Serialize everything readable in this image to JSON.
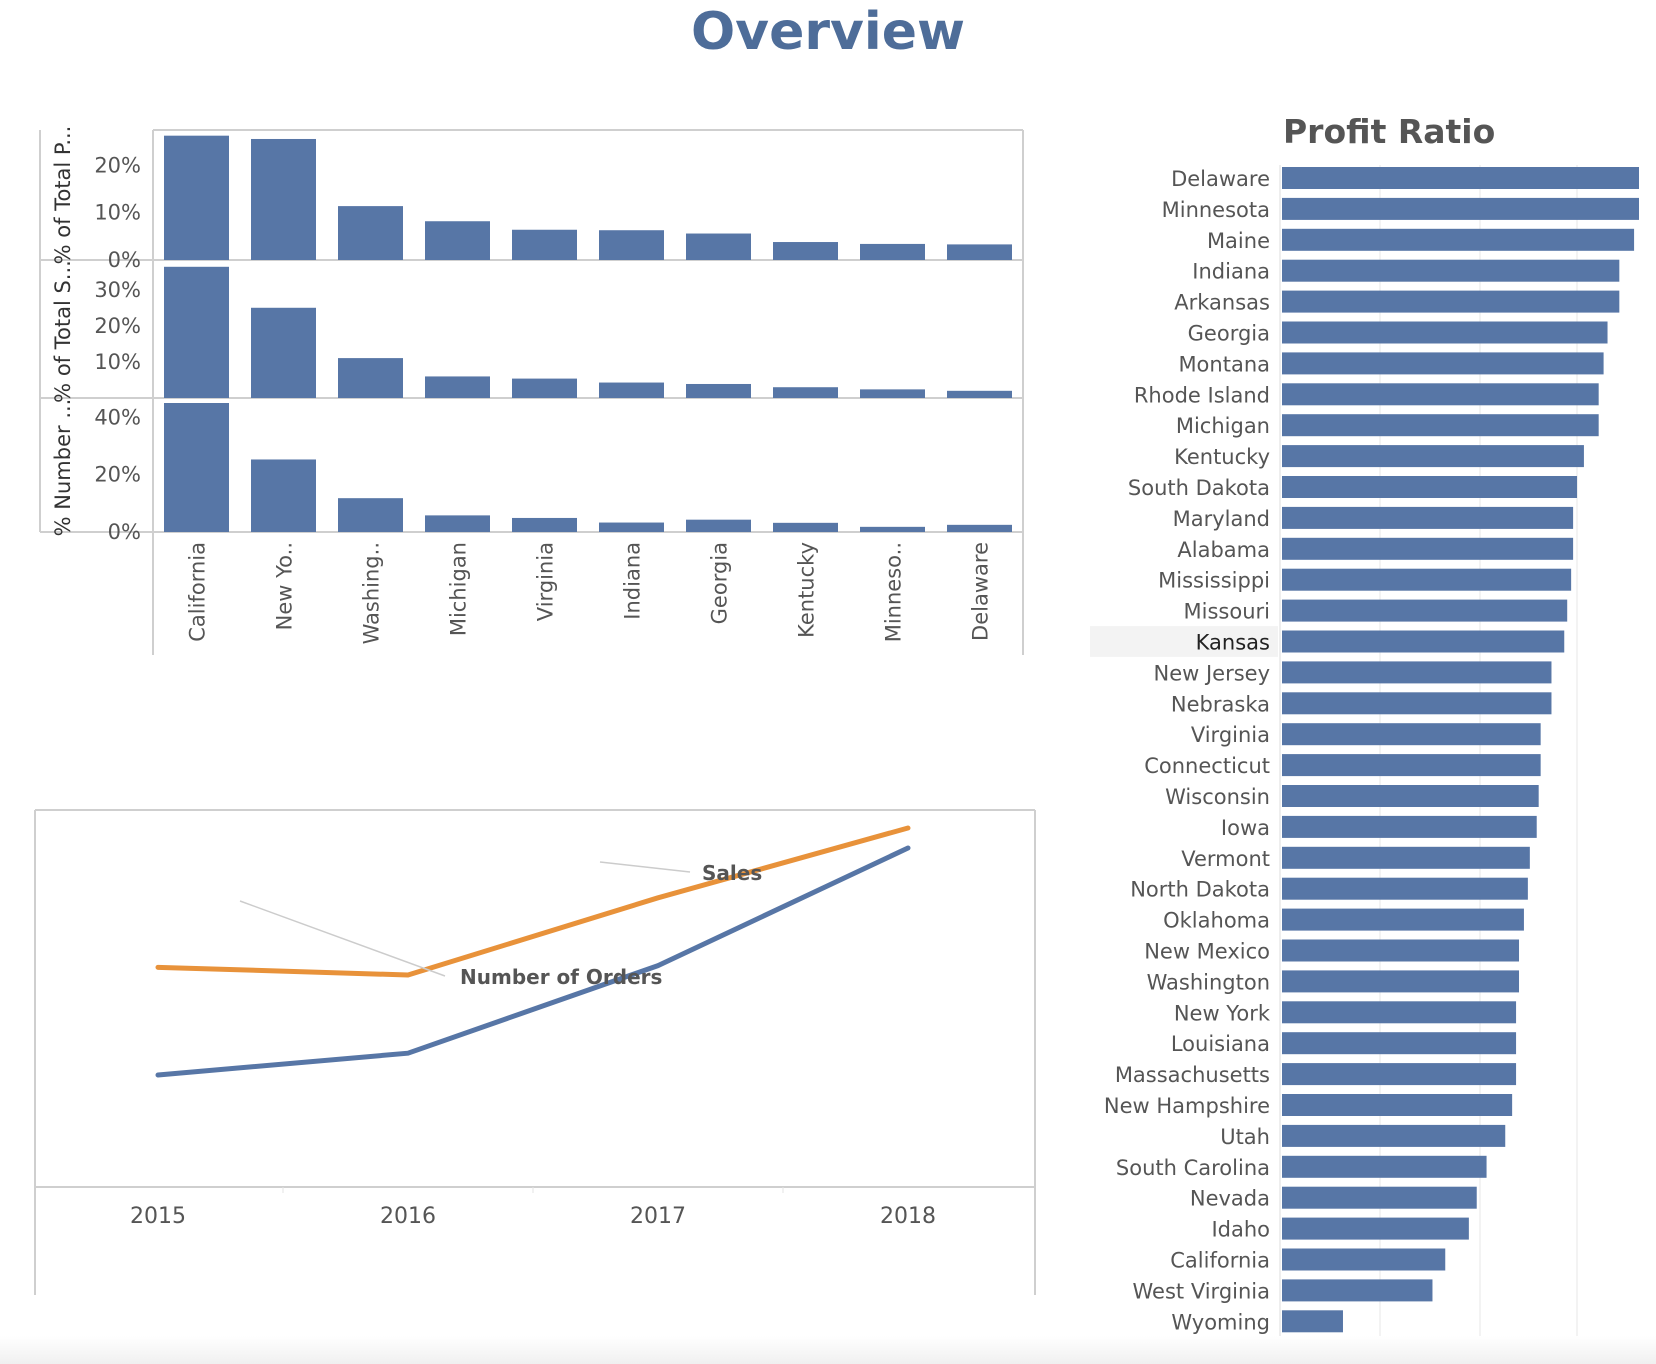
{
  "page": {
    "title": "Overview"
  },
  "chart_data": [
    {
      "type": "bar",
      "categories": [
        "California",
        "New Yo..",
        "Washing..",
        "Michigan",
        "Virginia",
        "Indiana",
        "Georgia",
        "Kentucky",
        "Minneso..",
        "Delaware"
      ],
      "series": [
        {
          "label": "% of Total P...",
          "values": [
            26.3,
            25.6,
            11.4,
            8.2,
            6.4,
            6.3,
            5.6,
            3.8,
            3.4,
            3.3
          ],
          "ticks": [
            0,
            10,
            20
          ],
          "ylim": [
            0,
            27.5
          ]
        },
        {
          "label": "% of Total S...",
          "values": [
            36.5,
            25.1,
            11.1,
            6.0,
            5.4,
            4.3,
            3.9,
            3.0,
            2.4,
            2.0
          ],
          "ticks": [
            10,
            20,
            30
          ],
          "ylim": [
            0,
            37
          ]
        },
        {
          "label": "% Number ...",
          "values": [
            45.0,
            25.3,
            11.8,
            5.8,
            4.9,
            3.3,
            4.3,
            3.2,
            1.8,
            2.5
          ],
          "ticks": [
            0,
            20,
            40
          ],
          "ylim": [
            0,
            45
          ]
        }
      ],
      "tick_format": "{v}%",
      "color": "#5776a6",
      "grid": false
    },
    {
      "type": "line",
      "x": [
        "2015",
        "2016",
        "2017",
        "2018"
      ],
      "series": [
        {
          "name": "Sales",
          "values": [
            484247,
            470533,
            608474,
            733215
          ],
          "color": "#e8923a"
        },
        {
          "name": "Number of Orders",
          "values": [
            969,
            1038,
            1315,
            1687
          ],
          "color": "#5776a6"
        }
      ],
      "annotations": [
        "Sales",
        "Number of Orders"
      ],
      "grid": false,
      "legend": "none"
    },
    {
      "type": "bar",
      "orientation": "horizontal",
      "title": "Profit Ratio",
      "categories": [
        "Delaware",
        "Minnesota",
        "Maine",
        "Indiana",
        "Arkansas",
        "Georgia",
        "Montana",
        "Rhode Island",
        "Michigan",
        "Kentucky",
        "South Dakota",
        "Maryland",
        "Alabama",
        "Mississippi",
        "Missouri",
        "Kansas",
        "New Jersey",
        "Nebraska",
        "Virginia",
        "Connecticut",
        "Wisconsin",
        "Iowa",
        "Vermont",
        "North Dakota",
        "Oklahoma",
        "New Mexico",
        "Washington",
        "New York",
        "Louisiana",
        "Massachusetts",
        "New Hampshire",
        "Utah",
        "South Carolina",
        "Nevada",
        "Idaho",
        "California",
        "West Virginia",
        "Wyoming"
      ],
      "values": [
        36.3,
        36.3,
        35.8,
        34.3,
        34.3,
        33.1,
        32.7,
        32.2,
        32.2,
        30.7,
        30.0,
        29.6,
        29.6,
        29.4,
        29.0,
        28.7,
        27.4,
        27.4,
        26.3,
        26.3,
        26.1,
        25.9,
        25.2,
        25.0,
        24.6,
        24.1,
        24.1,
        23.8,
        23.8,
        23.8,
        23.4,
        22.7,
        20.8,
        19.8,
        19.0,
        16.6,
        15.3,
        6.2
      ],
      "xlim": [
        0,
        36.3
      ],
      "highlight": "Kansas",
      "color": "#5776a6"
    }
  ]
}
